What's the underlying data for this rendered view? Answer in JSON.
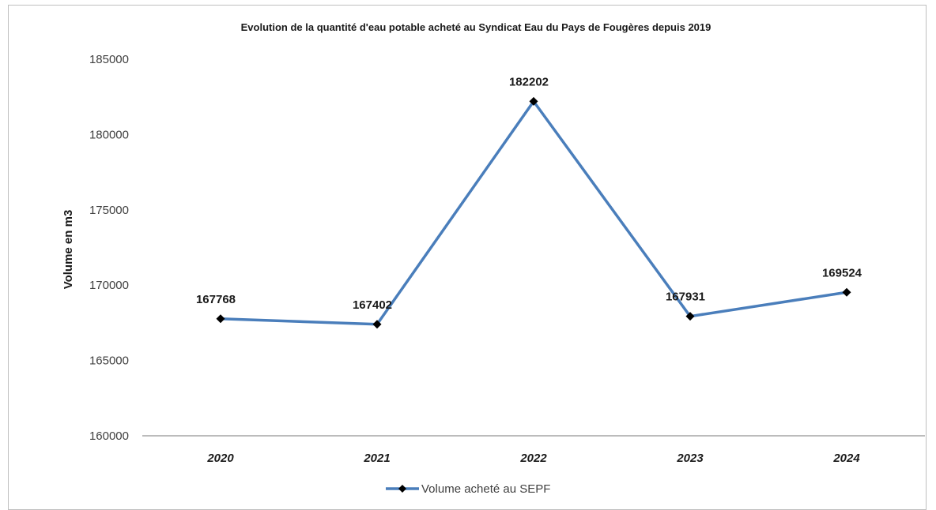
{
  "chart_data": {
    "type": "line",
    "title": "Evolution de la quantité d'eau potable acheté au Syndicat Eau du Pays de Fougères depuis 2019",
    "ylabel": "Volume en m3",
    "xlabel": "",
    "categories": [
      "2020",
      "2021",
      "2022",
      "2023",
      "2024"
    ],
    "ylim": [
      160000,
      185000
    ],
    "yticks": [
      "160000",
      "165000",
      "170000",
      "175000",
      "180000",
      "185000"
    ],
    "grid": false,
    "legend_position": "bottom",
    "series": [
      {
        "name": "Volume acheté au SEPF",
        "values": [
          167768,
          167402,
          182202,
          167931,
          169524
        ],
        "data_labels": [
          "167768",
          "167402",
          "182202",
          "167931",
          "169524"
        ],
        "color": "#4a7ebb",
        "marker_color": "#000000"
      }
    ]
  }
}
